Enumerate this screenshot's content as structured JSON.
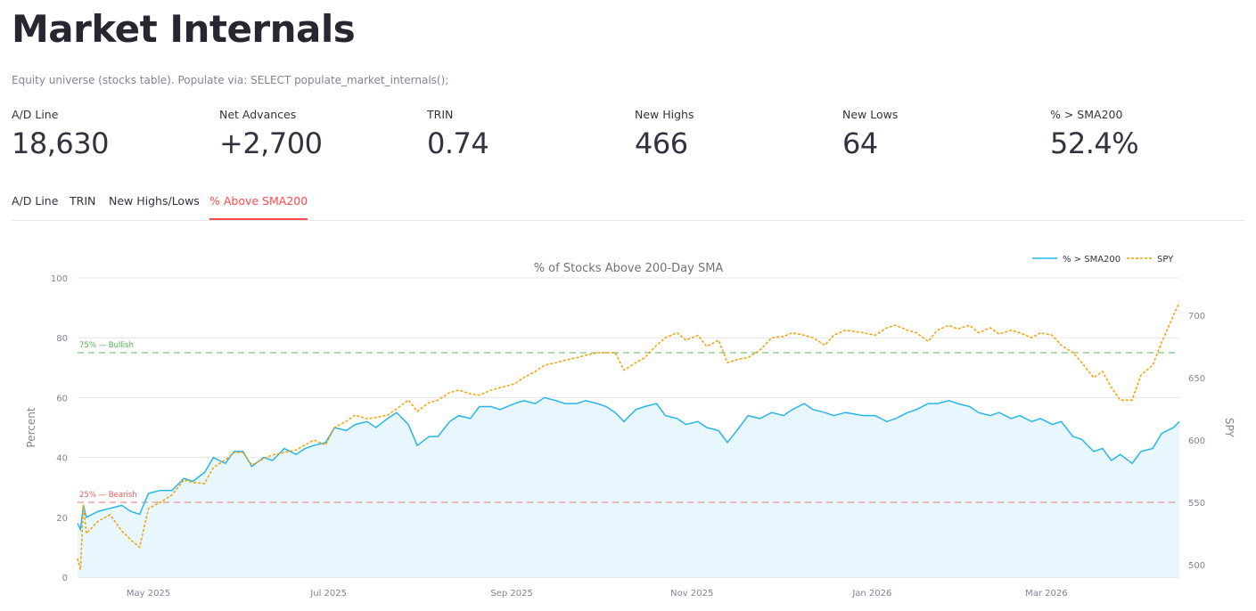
{
  "page": {
    "title": "Market Internals",
    "subtitle": "Equity universe (stocks table). Populate via: SELECT populate_market_internals();"
  },
  "metrics": [
    {
      "label": "A/D Line",
      "value": "18,630"
    },
    {
      "label": "Net Advances",
      "value": "+2,700"
    },
    {
      "label": "TRIN",
      "value": "0.74"
    },
    {
      "label": "New Highs",
      "value": "466"
    },
    {
      "label": "New Lows",
      "value": "64"
    },
    {
      "label": "% > SMA200",
      "value": "52.4%"
    }
  ],
  "tabs": [
    {
      "label": "A/D Line",
      "active": false
    },
    {
      "label": "TRIN",
      "active": false
    },
    {
      "label": "New Highs/Lows",
      "active": false
    },
    {
      "label": "% Above SMA200",
      "active": true
    }
  ],
  "colors": {
    "accent": "#ff4b4b",
    "pct_line": "#29b5e8",
    "pct_fill": "#e8f6fd",
    "spy_line": "#f5a000",
    "bullish": "#7ec87e",
    "bearish": "#ea8f8f"
  },
  "chart_data": {
    "type": "line",
    "title": "% of Stocks Above 200-Day SMA",
    "ylabel": "Percent",
    "y2label": "SPY",
    "ylim": [
      0,
      100
    ],
    "y2lim": [
      490,
      730
    ],
    "yticks": [
      0,
      20,
      40,
      60,
      80,
      100
    ],
    "y2ticks": [
      500,
      550,
      600,
      650,
      700
    ],
    "xlim": [
      "2025-04-07",
      "2026-04-15"
    ],
    "xticks": [
      {
        "date": "2025-05-01",
        "label": "May 2025"
      },
      {
        "date": "2025-07-01",
        "label": "Jul 2025"
      },
      {
        "date": "2025-09-01",
        "label": "Sep 2025"
      },
      {
        "date": "2025-11-01",
        "label": "Nov 2025"
      },
      {
        "date": "2026-01-01",
        "label": "Jan 2026"
      },
      {
        "date": "2026-03-01",
        "label": "Mar 2026"
      }
    ],
    "grid": true,
    "legend_position": "top-right",
    "reference_lines": [
      {
        "y": 75,
        "label": "75% — Bullish",
        "color": "#7ec87e"
      },
      {
        "y": 25,
        "label": "25% — Bearish",
        "color": "#ea8f8f"
      }
    ],
    "series": [
      {
        "name": "% > SMA200",
        "axis": "left",
        "style": "solid-area",
        "points": [
          [
            "2025-04-07",
            18
          ],
          [
            "2025-04-08",
            16
          ],
          [
            "2025-04-09",
            24
          ],
          [
            "2025-04-10",
            20
          ],
          [
            "2025-04-14",
            22
          ],
          [
            "2025-04-18",
            23
          ],
          [
            "2025-04-22",
            24
          ],
          [
            "2025-04-25",
            22
          ],
          [
            "2025-04-28",
            21
          ],
          [
            "2025-05-01",
            28
          ],
          [
            "2025-05-05",
            29
          ],
          [
            "2025-05-09",
            29
          ],
          [
            "2025-05-13",
            33
          ],
          [
            "2025-05-16",
            32
          ],
          [
            "2025-05-20",
            35
          ],
          [
            "2025-05-23",
            40
          ],
          [
            "2025-05-27",
            38
          ],
          [
            "2025-05-30",
            42
          ],
          [
            "2025-06-02",
            42
          ],
          [
            "2025-06-05",
            37
          ],
          [
            "2025-06-09",
            40
          ],
          [
            "2025-06-12",
            39
          ],
          [
            "2025-06-16",
            43
          ],
          [
            "2025-06-20",
            41
          ],
          [
            "2025-06-23",
            43
          ],
          [
            "2025-06-26",
            44
          ],
          [
            "2025-06-30",
            45
          ],
          [
            "2025-07-03",
            50
          ],
          [
            "2025-07-07",
            49
          ],
          [
            "2025-07-10",
            51
          ],
          [
            "2025-07-14",
            52
          ],
          [
            "2025-07-17",
            50
          ],
          [
            "2025-07-21",
            53
          ],
          [
            "2025-07-24",
            55
          ],
          [
            "2025-07-28",
            51
          ],
          [
            "2025-07-31",
            44
          ],
          [
            "2025-08-04",
            47
          ],
          [
            "2025-08-07",
            47
          ],
          [
            "2025-08-11",
            52
          ],
          [
            "2025-08-14",
            54
          ],
          [
            "2025-08-18",
            53
          ],
          [
            "2025-08-21",
            57
          ],
          [
            "2025-08-25",
            57
          ],
          [
            "2025-08-28",
            56
          ],
          [
            "2025-09-02",
            58
          ],
          [
            "2025-09-05",
            59
          ],
          [
            "2025-09-09",
            58
          ],
          [
            "2025-09-12",
            60
          ],
          [
            "2025-09-16",
            59
          ],
          [
            "2025-09-19",
            58
          ],
          [
            "2025-09-23",
            58
          ],
          [
            "2025-09-26",
            59
          ],
          [
            "2025-09-30",
            58
          ],
          [
            "2025-10-03",
            57
          ],
          [
            "2025-10-06",
            55
          ],
          [
            "2025-10-09",
            52
          ],
          [
            "2025-10-13",
            56
          ],
          [
            "2025-10-16",
            57
          ],
          [
            "2025-10-20",
            58
          ],
          [
            "2025-10-23",
            54
          ],
          [
            "2025-10-27",
            53
          ],
          [
            "2025-10-30",
            51
          ],
          [
            "2025-11-03",
            52
          ],
          [
            "2025-11-06",
            50
          ],
          [
            "2025-11-10",
            49
          ],
          [
            "2025-11-13",
            45
          ],
          [
            "2025-11-17",
            50
          ],
          [
            "2025-11-20",
            54
          ],
          [
            "2025-11-24",
            53
          ],
          [
            "2025-11-28",
            55
          ],
          [
            "2025-12-02",
            54
          ],
          [
            "2025-12-05",
            56
          ],
          [
            "2025-12-09",
            58
          ],
          [
            "2025-12-12",
            56
          ],
          [
            "2025-12-16",
            55
          ],
          [
            "2025-12-19",
            54
          ],
          [
            "2025-12-23",
            55
          ],
          [
            "2025-12-29",
            54
          ],
          [
            "2026-01-02",
            54
          ],
          [
            "2026-01-06",
            52
          ],
          [
            "2026-01-09",
            53
          ],
          [
            "2026-01-13",
            55
          ],
          [
            "2026-01-16",
            56
          ],
          [
            "2026-01-20",
            58
          ],
          [
            "2026-01-23",
            58
          ],
          [
            "2026-01-27",
            59
          ],
          [
            "2026-01-30",
            58
          ],
          [
            "2026-02-03",
            57
          ],
          [
            "2026-02-06",
            55
          ],
          [
            "2026-02-10",
            54
          ],
          [
            "2026-02-13",
            55
          ],
          [
            "2026-02-17",
            53
          ],
          [
            "2026-02-20",
            54
          ],
          [
            "2026-02-24",
            52
          ],
          [
            "2026-02-27",
            53
          ],
          [
            "2026-03-03",
            51
          ],
          [
            "2026-03-06",
            52
          ],
          [
            "2026-03-10",
            47
          ],
          [
            "2026-03-13",
            46
          ],
          [
            "2026-03-17",
            42
          ],
          [
            "2026-03-20",
            43
          ],
          [
            "2026-03-23",
            39
          ],
          [
            "2026-03-26",
            41
          ],
          [
            "2026-03-30",
            38
          ],
          [
            "2026-04-02",
            42
          ],
          [
            "2026-04-06",
            43
          ],
          [
            "2026-04-09",
            48
          ],
          [
            "2026-04-13",
            50
          ],
          [
            "2026-04-15",
            52
          ]
        ]
      },
      {
        "name": "SPY",
        "axis": "right",
        "style": "dotted",
        "points": [
          [
            "2025-04-07",
            505
          ],
          [
            "2025-04-08",
            496
          ],
          [
            "2025-04-09",
            548
          ],
          [
            "2025-04-10",
            525
          ],
          [
            "2025-04-14",
            535
          ],
          [
            "2025-04-18",
            540
          ],
          [
            "2025-04-22",
            527
          ],
          [
            "2025-04-25",
            520
          ],
          [
            "2025-04-28",
            514
          ],
          [
            "2025-05-01",
            545
          ],
          [
            "2025-05-05",
            550
          ],
          [
            "2025-05-09",
            556
          ],
          [
            "2025-05-13",
            568
          ],
          [
            "2025-05-16",
            566
          ],
          [
            "2025-05-20",
            565
          ],
          [
            "2025-05-23",
            578
          ],
          [
            "2025-05-27",
            584
          ],
          [
            "2025-05-30",
            590
          ],
          [
            "2025-06-02",
            590
          ],
          [
            "2025-06-05",
            580
          ],
          [
            "2025-06-09",
            585
          ],
          [
            "2025-06-12",
            588
          ],
          [
            "2025-06-16",
            590
          ],
          [
            "2025-06-20",
            592
          ],
          [
            "2025-06-23",
            596
          ],
          [
            "2025-06-26",
            600
          ],
          [
            "2025-06-30",
            596
          ],
          [
            "2025-07-03",
            610
          ],
          [
            "2025-07-07",
            615
          ],
          [
            "2025-07-10",
            620
          ],
          [
            "2025-07-14",
            617
          ],
          [
            "2025-07-17",
            618
          ],
          [
            "2025-07-21",
            620
          ],
          [
            "2025-07-24",
            625
          ],
          [
            "2025-07-28",
            632
          ],
          [
            "2025-07-31",
            623
          ],
          [
            "2025-08-04",
            630
          ],
          [
            "2025-08-07",
            632
          ],
          [
            "2025-08-11",
            638
          ],
          [
            "2025-08-14",
            640
          ],
          [
            "2025-08-18",
            637
          ],
          [
            "2025-08-21",
            636
          ],
          [
            "2025-08-25",
            640
          ],
          [
            "2025-08-28",
            642
          ],
          [
            "2025-09-02",
            645
          ],
          [
            "2025-09-05",
            650
          ],
          [
            "2025-09-09",
            655
          ],
          [
            "2025-09-12",
            660
          ],
          [
            "2025-09-16",
            662
          ],
          [
            "2025-09-19",
            664
          ],
          [
            "2025-09-23",
            666
          ],
          [
            "2025-09-26",
            668
          ],
          [
            "2025-09-30",
            670
          ],
          [
            "2025-10-03",
            670
          ],
          [
            "2025-10-06",
            670
          ],
          [
            "2025-10-09",
            656
          ],
          [
            "2025-10-13",
            662
          ],
          [
            "2025-10-16",
            666
          ],
          [
            "2025-10-20",
            676
          ],
          [
            "2025-10-23",
            682
          ],
          [
            "2025-10-27",
            686
          ],
          [
            "2025-10-30",
            680
          ],
          [
            "2025-11-03",
            684
          ],
          [
            "2025-11-06",
            675
          ],
          [
            "2025-11-10",
            680
          ],
          [
            "2025-11-13",
            662
          ],
          [
            "2025-11-17",
            665
          ],
          [
            "2025-11-20",
            666
          ],
          [
            "2025-11-24",
            672
          ],
          [
            "2025-11-28",
            682
          ],
          [
            "2025-12-02",
            683
          ],
          [
            "2025-12-05",
            686
          ],
          [
            "2025-12-09",
            684
          ],
          [
            "2025-12-12",
            682
          ],
          [
            "2025-12-16",
            676
          ],
          [
            "2025-12-19",
            684
          ],
          [
            "2025-12-23",
            688
          ],
          [
            "2025-12-29",
            686
          ],
          [
            "2026-01-02",
            684
          ],
          [
            "2026-01-06",
            690
          ],
          [
            "2026-01-09",
            692
          ],
          [
            "2026-01-13",
            688
          ],
          [
            "2026-01-16",
            686
          ],
          [
            "2026-01-20",
            679
          ],
          [
            "2026-01-23",
            688
          ],
          [
            "2026-01-27",
            692
          ],
          [
            "2026-01-30",
            689
          ],
          [
            "2026-02-03",
            692
          ],
          [
            "2026-02-06",
            686
          ],
          [
            "2026-02-10",
            690
          ],
          [
            "2026-02-13",
            685
          ],
          [
            "2026-02-17",
            688
          ],
          [
            "2026-02-20",
            686
          ],
          [
            "2026-02-24",
            682
          ],
          [
            "2026-02-27",
            686
          ],
          [
            "2026-03-03",
            684
          ],
          [
            "2026-03-06",
            676
          ],
          [
            "2026-03-10",
            670
          ],
          [
            "2026-03-13",
            662
          ],
          [
            "2026-03-17",
            650
          ],
          [
            "2026-03-20",
            655
          ],
          [
            "2026-03-23",
            642
          ],
          [
            "2026-03-26",
            632
          ],
          [
            "2026-03-30",
            632
          ],
          [
            "2026-04-02",
            652
          ],
          [
            "2026-04-06",
            660
          ],
          [
            "2026-04-09",
            678
          ],
          [
            "2026-04-13",
            700
          ],
          [
            "2026-04-15",
            710
          ]
        ]
      }
    ]
  }
}
